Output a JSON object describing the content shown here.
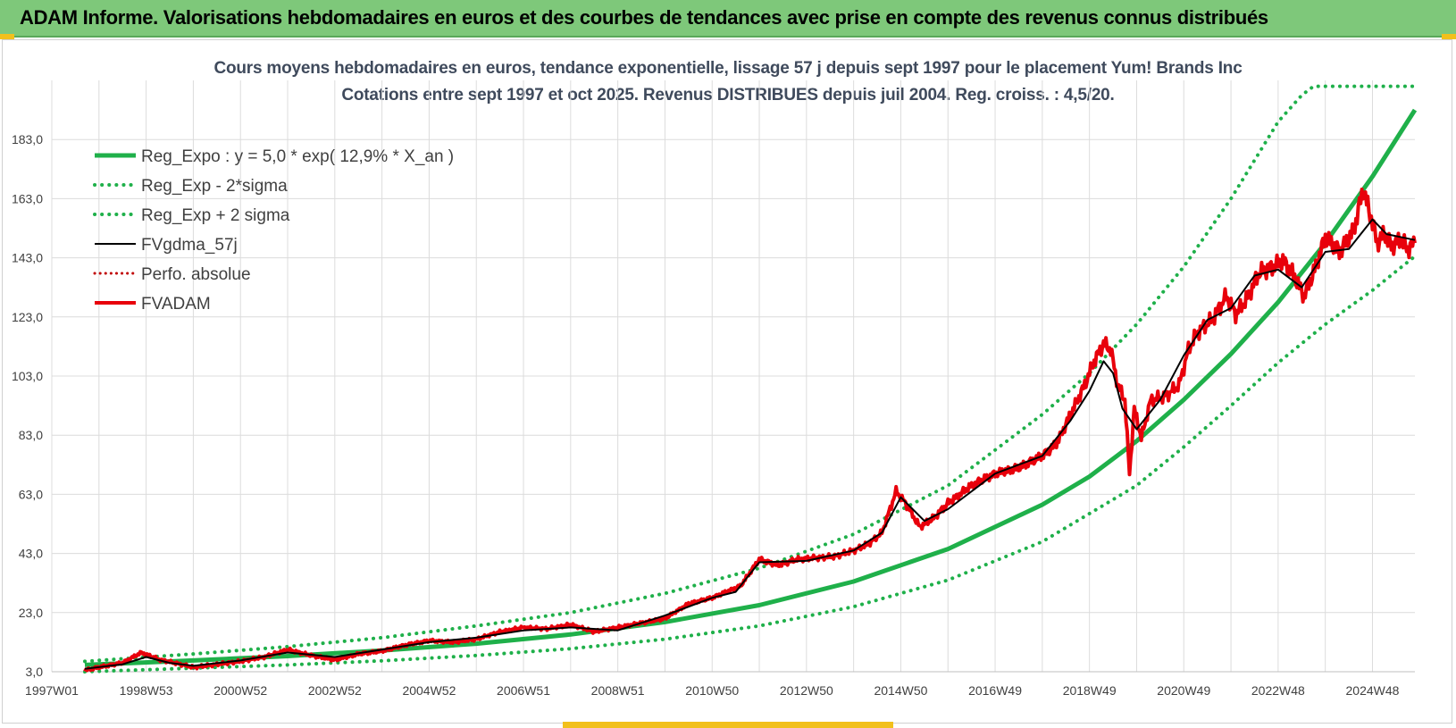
{
  "header": {
    "banner_title": "ADAM Informe. Valorisations hebdomadaires en euros et des courbes de tendances avec prise en compte des revenus connus distribués"
  },
  "colors": {
    "banner_bg": "#7ec87a",
    "trend_green": "#1fb04a",
    "price_red": "#e8000b",
    "smooth_black": "#000000",
    "perf_red": "#c00000",
    "grid": "#dcdcdc",
    "title_text": "#3f4a5c"
  },
  "chart_data": {
    "type": "line",
    "title": "Cours moyens hebdomadaires en euros, tendance exponentielle, lissage 57 j depuis sept 1997 pour le placement Yum! Brands Inc",
    "subtitle": "Cotations entre sept 1997 et oct 2025. Revenus DISTRIBUES depuis juil 2004. Reg. croiss. : 4,5/20.",
    "xlabel": "",
    "ylabel": "",
    "ylim": [
      3.0,
      203.0
    ],
    "xlim": [
      1997.0,
      2025.9
    ],
    "y_ticks": [
      "3,0",
      "23,0",
      "43,0",
      "63,0",
      "83,0",
      "103,0",
      "123,0",
      "143,0",
      "163,0",
      "183,0"
    ],
    "y_tick_values": [
      3,
      23,
      43,
      63,
      83,
      103,
      123,
      143,
      163,
      183
    ],
    "x_ticks": [
      "1997W01",
      "1998W53",
      "2000W52",
      "2002W52",
      "2004W52",
      "2006W51",
      "2008W51",
      "2010W50",
      "2012W50",
      "2014W50",
      "2016W49",
      "2018W49",
      "2020W49",
      "2022W48",
      "2024W48"
    ],
    "x_tick_values": [
      1997.0,
      1999.0,
      2001.0,
      2003.0,
      2005.0,
      2007.0,
      2009.0,
      2011.0,
      2013.0,
      2015.0,
      2017.0,
      2019.0,
      2021.0,
      2023.0,
      2025.0
    ],
    "grid": true,
    "legend_position": "top-left",
    "legend": [
      "Reg_Expo : y = 5,0 * exp( 12,9% *  X_an )",
      "Reg_Exp - 2*sigma",
      "Reg_Exp + 2 sigma",
      "FVgdma_57j",
      "Perfo. absolue",
      "FVADAM"
    ],
    "series": [
      {
        "name": "Reg_Expo : y = 5,0 * exp( 12,9% *  X_an )",
        "style": "solid-thick-green",
        "x": [
          1997.7,
          2000.0,
          2002.0,
          2004.0,
          2006.0,
          2008.0,
          2010.0,
          2012.0,
          2014.0,
          2016.0,
          2018.0,
          2019.0,
          2020.0,
          2021.0,
          2022.0,
          2023.0,
          2024.0,
          2025.0,
          2025.9
        ],
        "values": [
          5.3,
          6.8,
          8.3,
          10.2,
          12.5,
          15.6,
          19.8,
          25.5,
          33.5,
          44.5,
          59.5,
          69.0,
          81.0,
          95.0,
          110.5,
          128.0,
          148.0,
          170.5,
          193.0
        ]
      },
      {
        "name": "Reg_Exp - 2*sigma",
        "style": "dotted-green",
        "x": [
          1997.7,
          2000.0,
          2002.0,
          2004.0,
          2006.0,
          2008.0,
          2010.0,
          2012.0,
          2014.0,
          2016.0,
          2018.0,
          2020.0,
          2021.0,
          2022.0,
          2023.0,
          2024.0,
          2025.0,
          2025.9
        ],
        "values": [
          3.0,
          4.2,
          5.3,
          6.7,
          8.5,
          10.8,
          14.0,
          18.5,
          25.0,
          34.0,
          47.0,
          66.0,
          79.0,
          93.0,
          107.5,
          120.5,
          132.0,
          143.5
        ]
      },
      {
        "name": "Reg_Exp + 2 sigma",
        "style": "dotted-green",
        "x": [
          1997.7,
          2000.0,
          2002.0,
          2004.0,
          2006.0,
          2008.0,
          2010.0,
          2012.0,
          2014.0,
          2016.0,
          2018.0,
          2019.0,
          2020.0,
          2021.0,
          2022.0,
          2023.0,
          2023.5,
          2023.75,
          2025.9
        ],
        "values": [
          6.5,
          9.0,
          11.5,
          14.5,
          18.5,
          23.0,
          29.5,
          38.0,
          49.5,
          66.0,
          90.0,
          104.0,
          120.5,
          140.0,
          163.0,
          189.0,
          198.0,
          201.0,
          201.0
        ]
      },
      {
        "name": "FVgdma_57j",
        "style": "solid-black",
        "x": [
          1997.7,
          1998.5,
          1999.0,
          1999.5,
          2000.0,
          2001.0,
          2002.0,
          2003.0,
          2004.0,
          2005.0,
          2006.0,
          2007.0,
          2008.0,
          2009.0,
          2010.0,
          2011.0,
          2011.5,
          2012.0,
          2013.0,
          2014.0,
          2014.6,
          2015.0,
          2015.5,
          2016.0,
          2017.0,
          2018.0,
          2018.6,
          2019.0,
          2019.3,
          2019.5,
          2019.7,
          2020.0,
          2020.5,
          2021.0,
          2021.5,
          2022.0,
          2022.5,
          2023.0,
          2023.5,
          2024.0,
          2024.5,
          2025.0,
          2025.3,
          2025.9
        ],
        "values": [
          4.0,
          5.5,
          8.0,
          6.0,
          5.0,
          6.8,
          9.5,
          8.0,
          10.5,
          13.0,
          14.5,
          17.0,
          18.0,
          17.0,
          22.0,
          28.0,
          30.0,
          40.0,
          40.5,
          44.0,
          50.0,
          62.0,
          54.0,
          58.0,
          70.0,
          76.0,
          88.0,
          98.0,
          108.0,
          104.0,
          92.0,
          85.0,
          95.0,
          110.0,
          122.0,
          126.0,
          137.0,
          139.0,
          133.0,
          145.0,
          146.0,
          156.0,
          151.0,
          149.0
        ]
      },
      {
        "name": "Perfo. absolue",
        "style": "dotted-darkred",
        "x": [],
        "values": []
      },
      {
        "name": "FVADAM",
        "style": "solid-thick-red",
        "x": [
          1997.7,
          1998.0,
          1998.5,
          1998.9,
          1999.3,
          1999.6,
          2000.0,
          2000.5,
          2001.0,
          2001.5,
          2002.0,
          2002.5,
          2003.0,
          2003.5,
          2004.0,
          2004.5,
          2005.0,
          2005.5,
          2006.0,
          2006.5,
          2007.0,
          2007.5,
          2008.0,
          2008.5,
          2009.0,
          2009.5,
          2010.0,
          2010.5,
          2011.0,
          2011.3,
          2011.6,
          2012.0,
          2012.4,
          2012.8,
          2013.2,
          2013.6,
          2014.0,
          2014.3,
          2014.6,
          2014.9,
          2015.1,
          2015.4,
          2015.7,
          2016.0,
          2016.5,
          2017.0,
          2017.5,
          2018.0,
          2018.3,
          2018.6,
          2018.9,
          2019.1,
          2019.3,
          2019.45,
          2019.6,
          2019.75,
          2019.85,
          2019.95,
          2020.1,
          2020.3,
          2020.6,
          2020.9,
          2021.1,
          2021.3,
          2021.6,
          2021.9,
          2022.1,
          2022.3,
          2022.6,
          2022.9,
          2023.1,
          2023.3,
          2023.55,
          2023.8,
          2024.0,
          2024.3,
          2024.6,
          2024.8,
          2025.0,
          2025.1,
          2025.25,
          2025.4,
          2025.6,
          2025.75,
          2025.9
        ],
        "values": [
          3.5,
          4.5,
          6.0,
          9.5,
          7.0,
          6.0,
          4.5,
          5.5,
          6.5,
          8.0,
          10.5,
          8.5,
          7.0,
          9.0,
          10.0,
          12.0,
          13.5,
          13.0,
          14.0,
          16.5,
          18.0,
          17.5,
          19.0,
          16.5,
          18.0,
          19.5,
          21.0,
          26.0,
          28.0,
          30.0,
          32.0,
          41.0,
          39.0,
          41.0,
          41.5,
          42.0,
          44.0,
          46.0,
          50.0,
          64.0,
          60.0,
          52.0,
          55.0,
          60.0,
          66.0,
          70.0,
          72.0,
          76.0,
          80.0,
          90.0,
          100.0,
          108.0,
          114.0,
          112.0,
          100.0,
          95.0,
          70.0,
          92.0,
          82.0,
          95.0,
          96.0,
          100.0,
          112.0,
          118.0,
          122.0,
          130.0,
          124.0,
          128.0,
          138.0,
          140.0,
          142.0,
          138.0,
          130.0,
          140.0,
          150.0,
          145.0,
          152.0,
          166.0,
          155.0,
          148.0,
          151.0,
          147.0,
          149.0,
          146.0,
          148.0
        ]
      }
    ]
  }
}
